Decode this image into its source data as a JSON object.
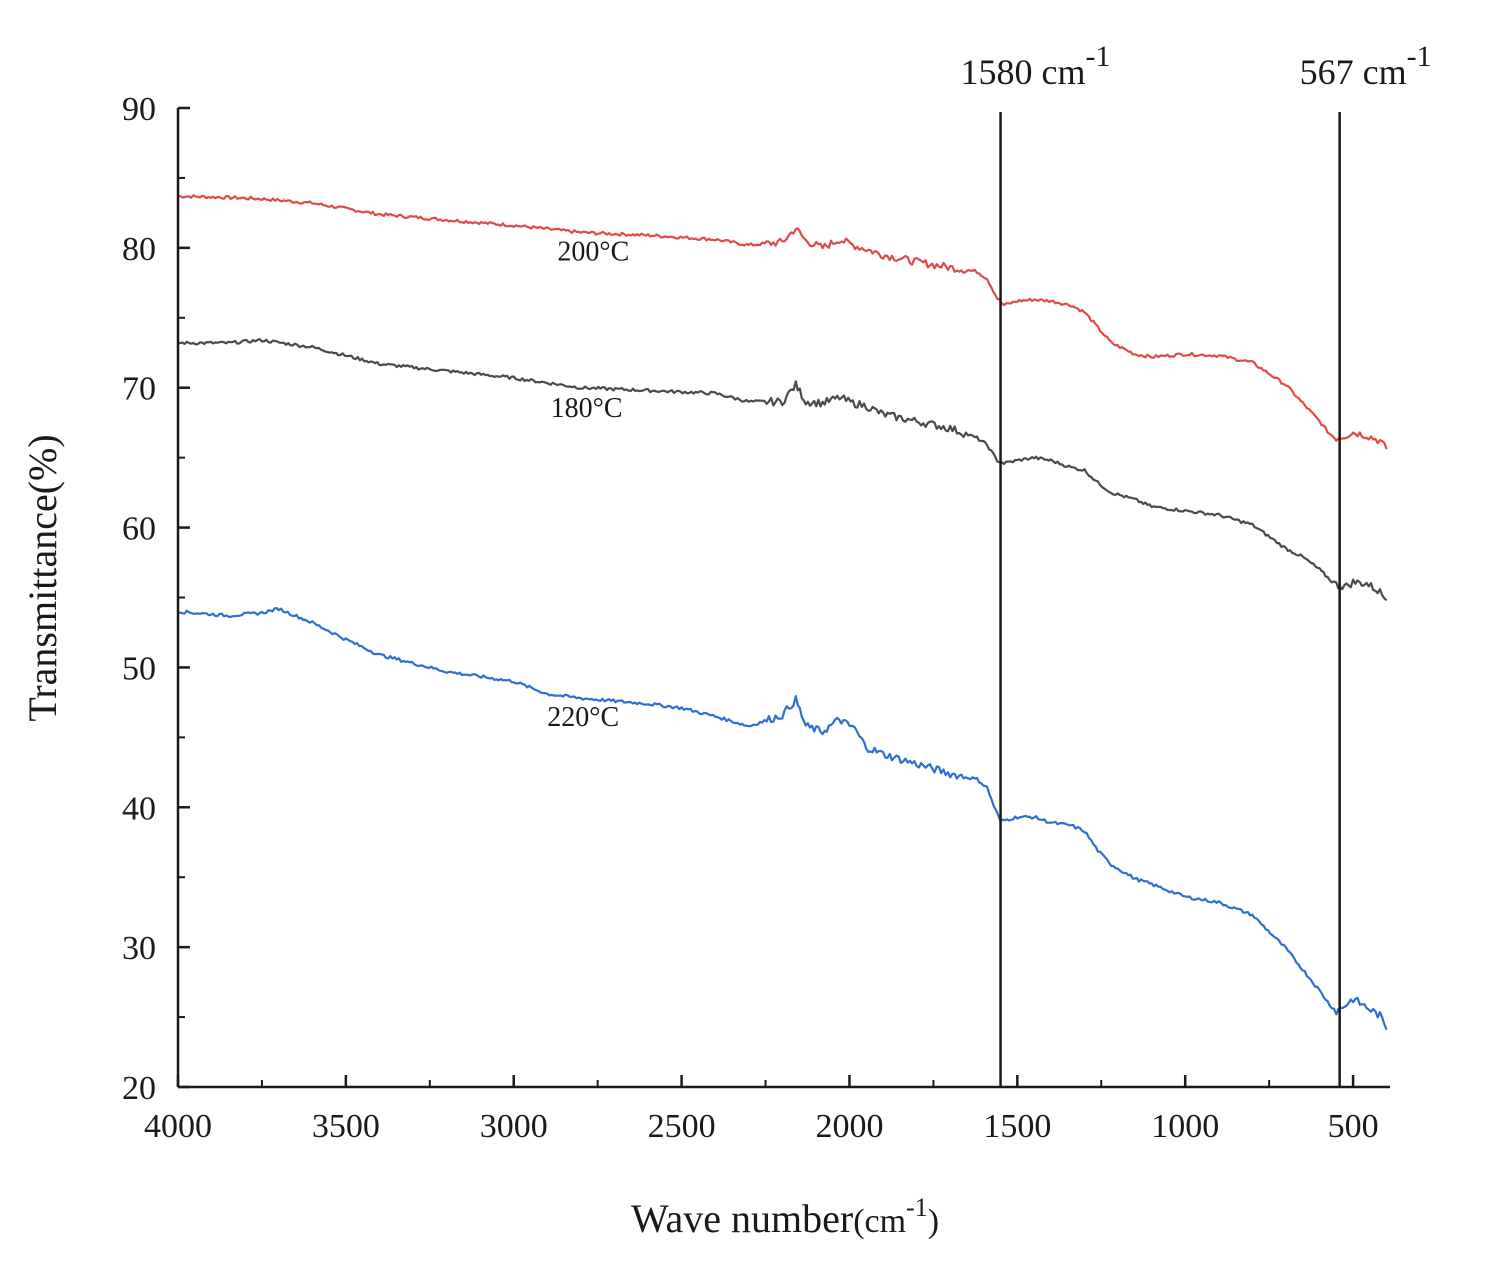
{
  "chart_data": {
    "type": "line",
    "title": "",
    "xlabel": "Wave number(cm-1)",
    "xlabel_parts": {
      "main": "Wave number",
      "paren_open": "(cm",
      "sup": "-1",
      "paren_close": ")"
    },
    "ylabel": "Transmittance(%)",
    "xlim": [
      4000,
      390
    ],
    "ylim": [
      20,
      90
    ],
    "x_ticks": [
      4000,
      3500,
      3000,
      2500,
      2000,
      1500,
      1000,
      500
    ],
    "x_tick_labels": [
      "4000",
      "3500",
      "3000",
      "2500",
      "2000",
      "1500",
      "1000",
      "500"
    ],
    "y_ticks": [
      20,
      30,
      40,
      50,
      60,
      70,
      80,
      90
    ],
    "y_tick_labels": [
      "20",
      "30",
      "40",
      "50",
      "60",
      "70",
      "80",
      "90"
    ],
    "grid": false,
    "reference_lines": [
      {
        "x": 1550,
        "label": "1580",
        "unit": "cm",
        "sup": "-1"
      },
      {
        "x": 540,
        "label": "567",
        "unit": "cm",
        "sup": "-1"
      }
    ],
    "series": [
      {
        "name": "200°C",
        "color": "#e04a4a",
        "label_anchor": {
          "x": 2870,
          "y": 79.1
        },
        "x": [
          4000,
          3850,
          3750,
          3600,
          3400,
          3200,
          3000,
          2800,
          2600,
          2400,
          2300,
          2200,
          2160,
          2130,
          2080,
          2030,
          1990,
          1950,
          1900,
          1800,
          1700,
          1620,
          1590,
          1560,
          1540,
          1500,
          1450,
          1400,
          1340,
          1300,
          1260,
          1220,
          1150,
          1100,
          1000,
          900,
          800,
          700,
          650,
          600,
          570,
          550,
          520,
          500,
          460,
          420,
          400
        ],
        "y": [
          83.7,
          83.6,
          83.5,
          83.2,
          82.4,
          82.0,
          81.6,
          81.1,
          80.9,
          80.6,
          80.2,
          80.4,
          81.4,
          80.5,
          80.0,
          80.6,
          80.2,
          79.9,
          79.5,
          79.0,
          78.6,
          78.3,
          77.8,
          76.4,
          75.9,
          76.2,
          76.3,
          76.2,
          75.9,
          75.4,
          74.3,
          73.2,
          72.4,
          72.2,
          72.4,
          72.3,
          71.8,
          70.2,
          68.9,
          67.6,
          66.7,
          66.4,
          66.6,
          66.8,
          66.6,
          66.2,
          65.6
        ]
      },
      {
        "name": "180°C",
        "color": "#4a4a4a",
        "label_anchor": {
          "x": 2890,
          "y": 67.9
        },
        "x": [
          4000,
          3850,
          3750,
          3600,
          3400,
          3200,
          3000,
          2800,
          2600,
          2400,
          2300,
          2200,
          2160,
          2130,
          2080,
          2030,
          1990,
          1950,
          1900,
          1800,
          1700,
          1620,
          1590,
          1560,
          1540,
          1500,
          1450,
          1400,
          1340,
          1300,
          1260,
          1220,
          1150,
          1100,
          1000,
          900,
          800,
          700,
          650,
          600,
          570,
          550,
          520,
          500,
          460,
          420,
          400
        ],
        "y": [
          73.2,
          73.2,
          73.4,
          72.9,
          71.7,
          71.2,
          70.7,
          70.0,
          69.8,
          69.6,
          69.0,
          69.0,
          70.2,
          69.0,
          68.9,
          69.3,
          68.9,
          68.7,
          68.1,
          67.6,
          67.1,
          66.4,
          65.9,
          64.8,
          64.6,
          64.8,
          65.0,
          64.8,
          64.3,
          64.1,
          63.2,
          62.5,
          62.0,
          61.5,
          61.2,
          60.9,
          60.2,
          58.5,
          57.9,
          57.0,
          56.3,
          55.9,
          55.8,
          56.1,
          56.0,
          55.4,
          54.8
        ]
      },
      {
        "name": "220°C",
        "color": "#2f6fd0",
        "label_anchor": {
          "x": 2900,
          "y": 45.8
        },
        "x": [
          4000,
          3850,
          3750,
          3700,
          3600,
          3500,
          3400,
          3200,
          3000,
          2900,
          2800,
          2600,
          2500,
          2400,
          2300,
          2200,
          2160,
          2130,
          2080,
          2030,
          2000,
          1990,
          1950,
          1900,
          1800,
          1700,
          1620,
          1590,
          1570,
          1550,
          1500,
          1450,
          1400,
          1340,
          1300,
          1260,
          1220,
          1150,
          1100,
          1000,
          900,
          800,
          700,
          650,
          600,
          570,
          550,
          520,
          500,
          460,
          420,
          400
        ],
        "y": [
          54.0,
          53.7,
          53.9,
          54.2,
          53.2,
          52.0,
          50.9,
          49.7,
          49.0,
          48.1,
          47.8,
          47.4,
          47.1,
          46.5,
          45.8,
          46.6,
          47.7,
          45.8,
          45.4,
          46.3,
          45.8,
          45.8,
          44.3,
          43.8,
          43.1,
          42.4,
          42.0,
          41.4,
          40.1,
          39.0,
          39.3,
          39.3,
          38.9,
          38.7,
          38.3,
          36.9,
          35.9,
          34.9,
          34.5,
          33.6,
          33.2,
          32.3,
          29.9,
          28.4,
          26.9,
          25.9,
          25.4,
          25.9,
          26.3,
          25.7,
          25.1,
          24.1
        ]
      }
    ]
  }
}
